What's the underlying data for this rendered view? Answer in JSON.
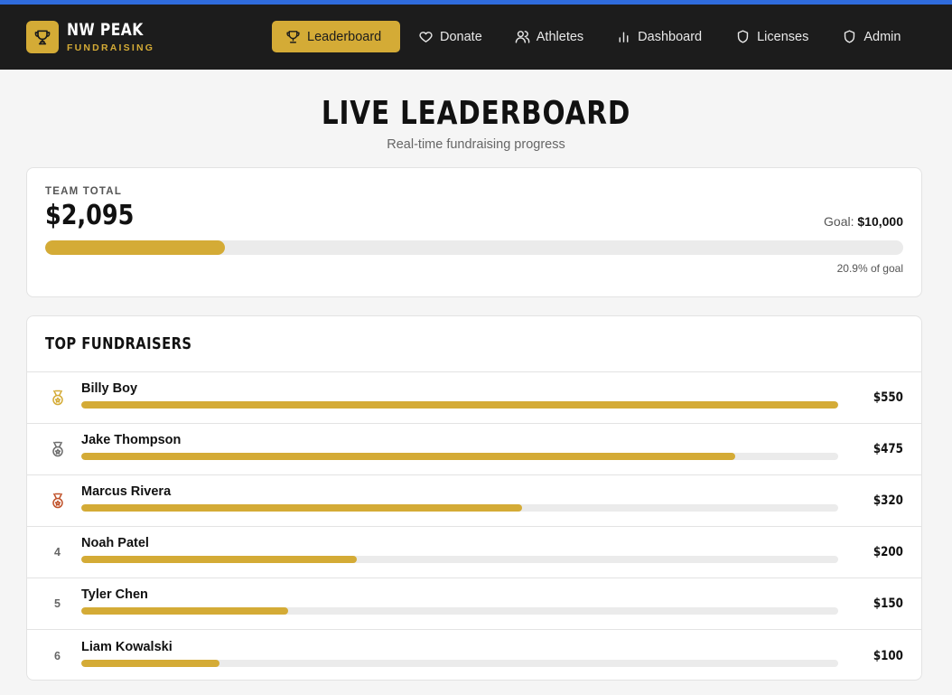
{
  "brand": {
    "name": "NW PEAK",
    "sub": "FUNDRAISING",
    "icon": "trophy-icon"
  },
  "nav": [
    {
      "label": "Leaderboard",
      "icon": "trophy-icon",
      "active": true
    },
    {
      "label": "Donate",
      "icon": "heart-icon"
    },
    {
      "label": "Athletes",
      "icon": "users-icon"
    },
    {
      "label": "Dashboard",
      "icon": "bar-chart-icon"
    },
    {
      "label": "Licenses",
      "icon": "shield-icon"
    },
    {
      "label": "Admin",
      "icon": "shield-icon"
    }
  ],
  "header": {
    "title": "LIVE LEADERBOARD",
    "subtitle": "Real-time fundraising progress"
  },
  "team": {
    "label": "TEAM TOTAL",
    "amount": "$2,095",
    "goal_label": "Goal:",
    "goal_value": "$10,000",
    "progress": 0.209,
    "progress_text": "20.9% of goal"
  },
  "leaders": {
    "title": "TOP FUNDRAISERS",
    "rows": [
      {
        "rank": "1",
        "medal": "gold-medal-icon",
        "name": "Billy Boy",
        "amount": "$550",
        "progress": 1.0
      },
      {
        "rank": "2",
        "medal": "silver-medal-icon",
        "name": "Jake Thompson",
        "amount": "$475",
        "progress": 0.864
      },
      {
        "rank": "3",
        "medal": "bronze-medal-icon",
        "name": "Marcus Rivera",
        "amount": "$320",
        "progress": 0.582
      },
      {
        "rank": "4",
        "name": "Noah Patel",
        "amount": "$200",
        "progress": 0.364
      },
      {
        "rank": "5",
        "name": "Tyler Chen",
        "amount": "$150",
        "progress": 0.273
      },
      {
        "rank": "6",
        "name": "Liam Kowalski",
        "amount": "$100",
        "progress": 0.182
      }
    ]
  },
  "colors": {
    "accent": "#d4ab36",
    "navbar": "#1c1c1c",
    "topline": "#2f6bdc",
    "gold": "#d4ab36",
    "silver": "#6b6b6b",
    "bronze": "#c0522a"
  }
}
